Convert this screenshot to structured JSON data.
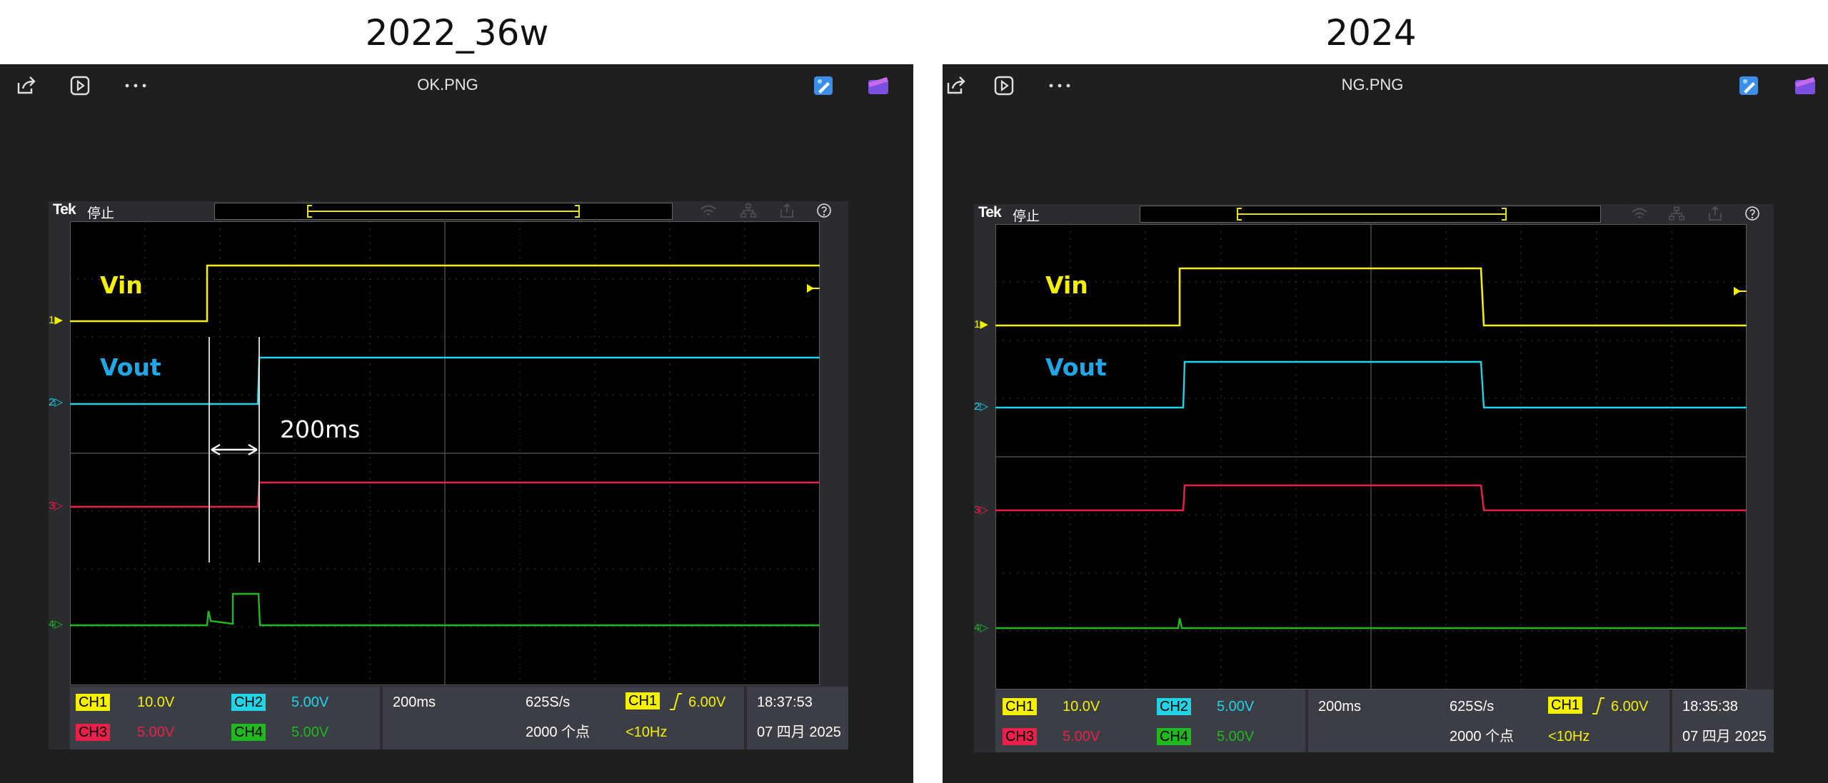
{
  "panels": [
    {
      "heading": "2022_36w",
      "viewer": {
        "file_name": "OK.PNG",
        "toolbar_icons": [
          "share-icon",
          "slideshow-icon",
          "more-icon",
          "edit-image-icon",
          "clipchamp-icon"
        ]
      },
      "scope": {
        "brand": "Tek",
        "status": "停止",
        "channel_markers": [
          "1",
          "2",
          "3",
          "4"
        ],
        "labels": {
          "vin": "Vin",
          "vout": "Vout",
          "measurement": "200ms"
        },
        "readout": {
          "ch1": "CH1",
          "ch1_scale": "10.0V",
          "ch2": "CH2",
          "ch2_scale": "5.00V",
          "ch3": "CH3",
          "ch3_scale": "5.00V",
          "ch4": "CH4",
          "ch4_scale": "5.00V",
          "timebase": "200ms",
          "sample_rate": "625S/s",
          "record_length": "2000 个点",
          "trigger_source": "CH1",
          "trigger_level": "6.00V",
          "trigger_freq": "<10Hz",
          "time": "18:37:53",
          "date": "07 四月 2025"
        },
        "colors": {
          "ch1": "#f5f000",
          "ch2": "#22d3e6",
          "ch3": "#e8204c",
          "ch4": "#1fb81f",
          "label_vout": "#1fa8e8"
        }
      }
    },
    {
      "heading": "2024",
      "viewer": {
        "file_name": "NG.PNG",
        "toolbar_icons": [
          "share-icon",
          "slideshow-icon",
          "more-icon",
          "edit-image-icon",
          "clipchamp-icon"
        ]
      },
      "scope": {
        "brand": "Tek",
        "status": "停止",
        "channel_markers": [
          "1",
          "2",
          "3",
          "4"
        ],
        "labels": {
          "vin": "Vin",
          "vout": "Vout"
        },
        "readout": {
          "ch1": "CH1",
          "ch1_scale": "10.0V",
          "ch2": "CH2",
          "ch2_scale": "5.00V",
          "ch3": "CH3",
          "ch3_scale": "5.00V",
          "ch4": "CH4",
          "ch4_scale": "5.00V",
          "timebase": "200ms",
          "sample_rate": "625S/s",
          "record_length": "2000 个点",
          "trigger_source": "CH1",
          "trigger_level": "6.00V",
          "trigger_freq": "<10Hz",
          "time": "18:35:38",
          "date": "07 四月 2025"
        },
        "colors": {
          "ch1": "#f5f000",
          "ch2": "#22d3e6",
          "ch3": "#e8204c",
          "ch4": "#1fb81f",
          "label_vout": "#1fa8e8"
        }
      }
    }
  ]
}
